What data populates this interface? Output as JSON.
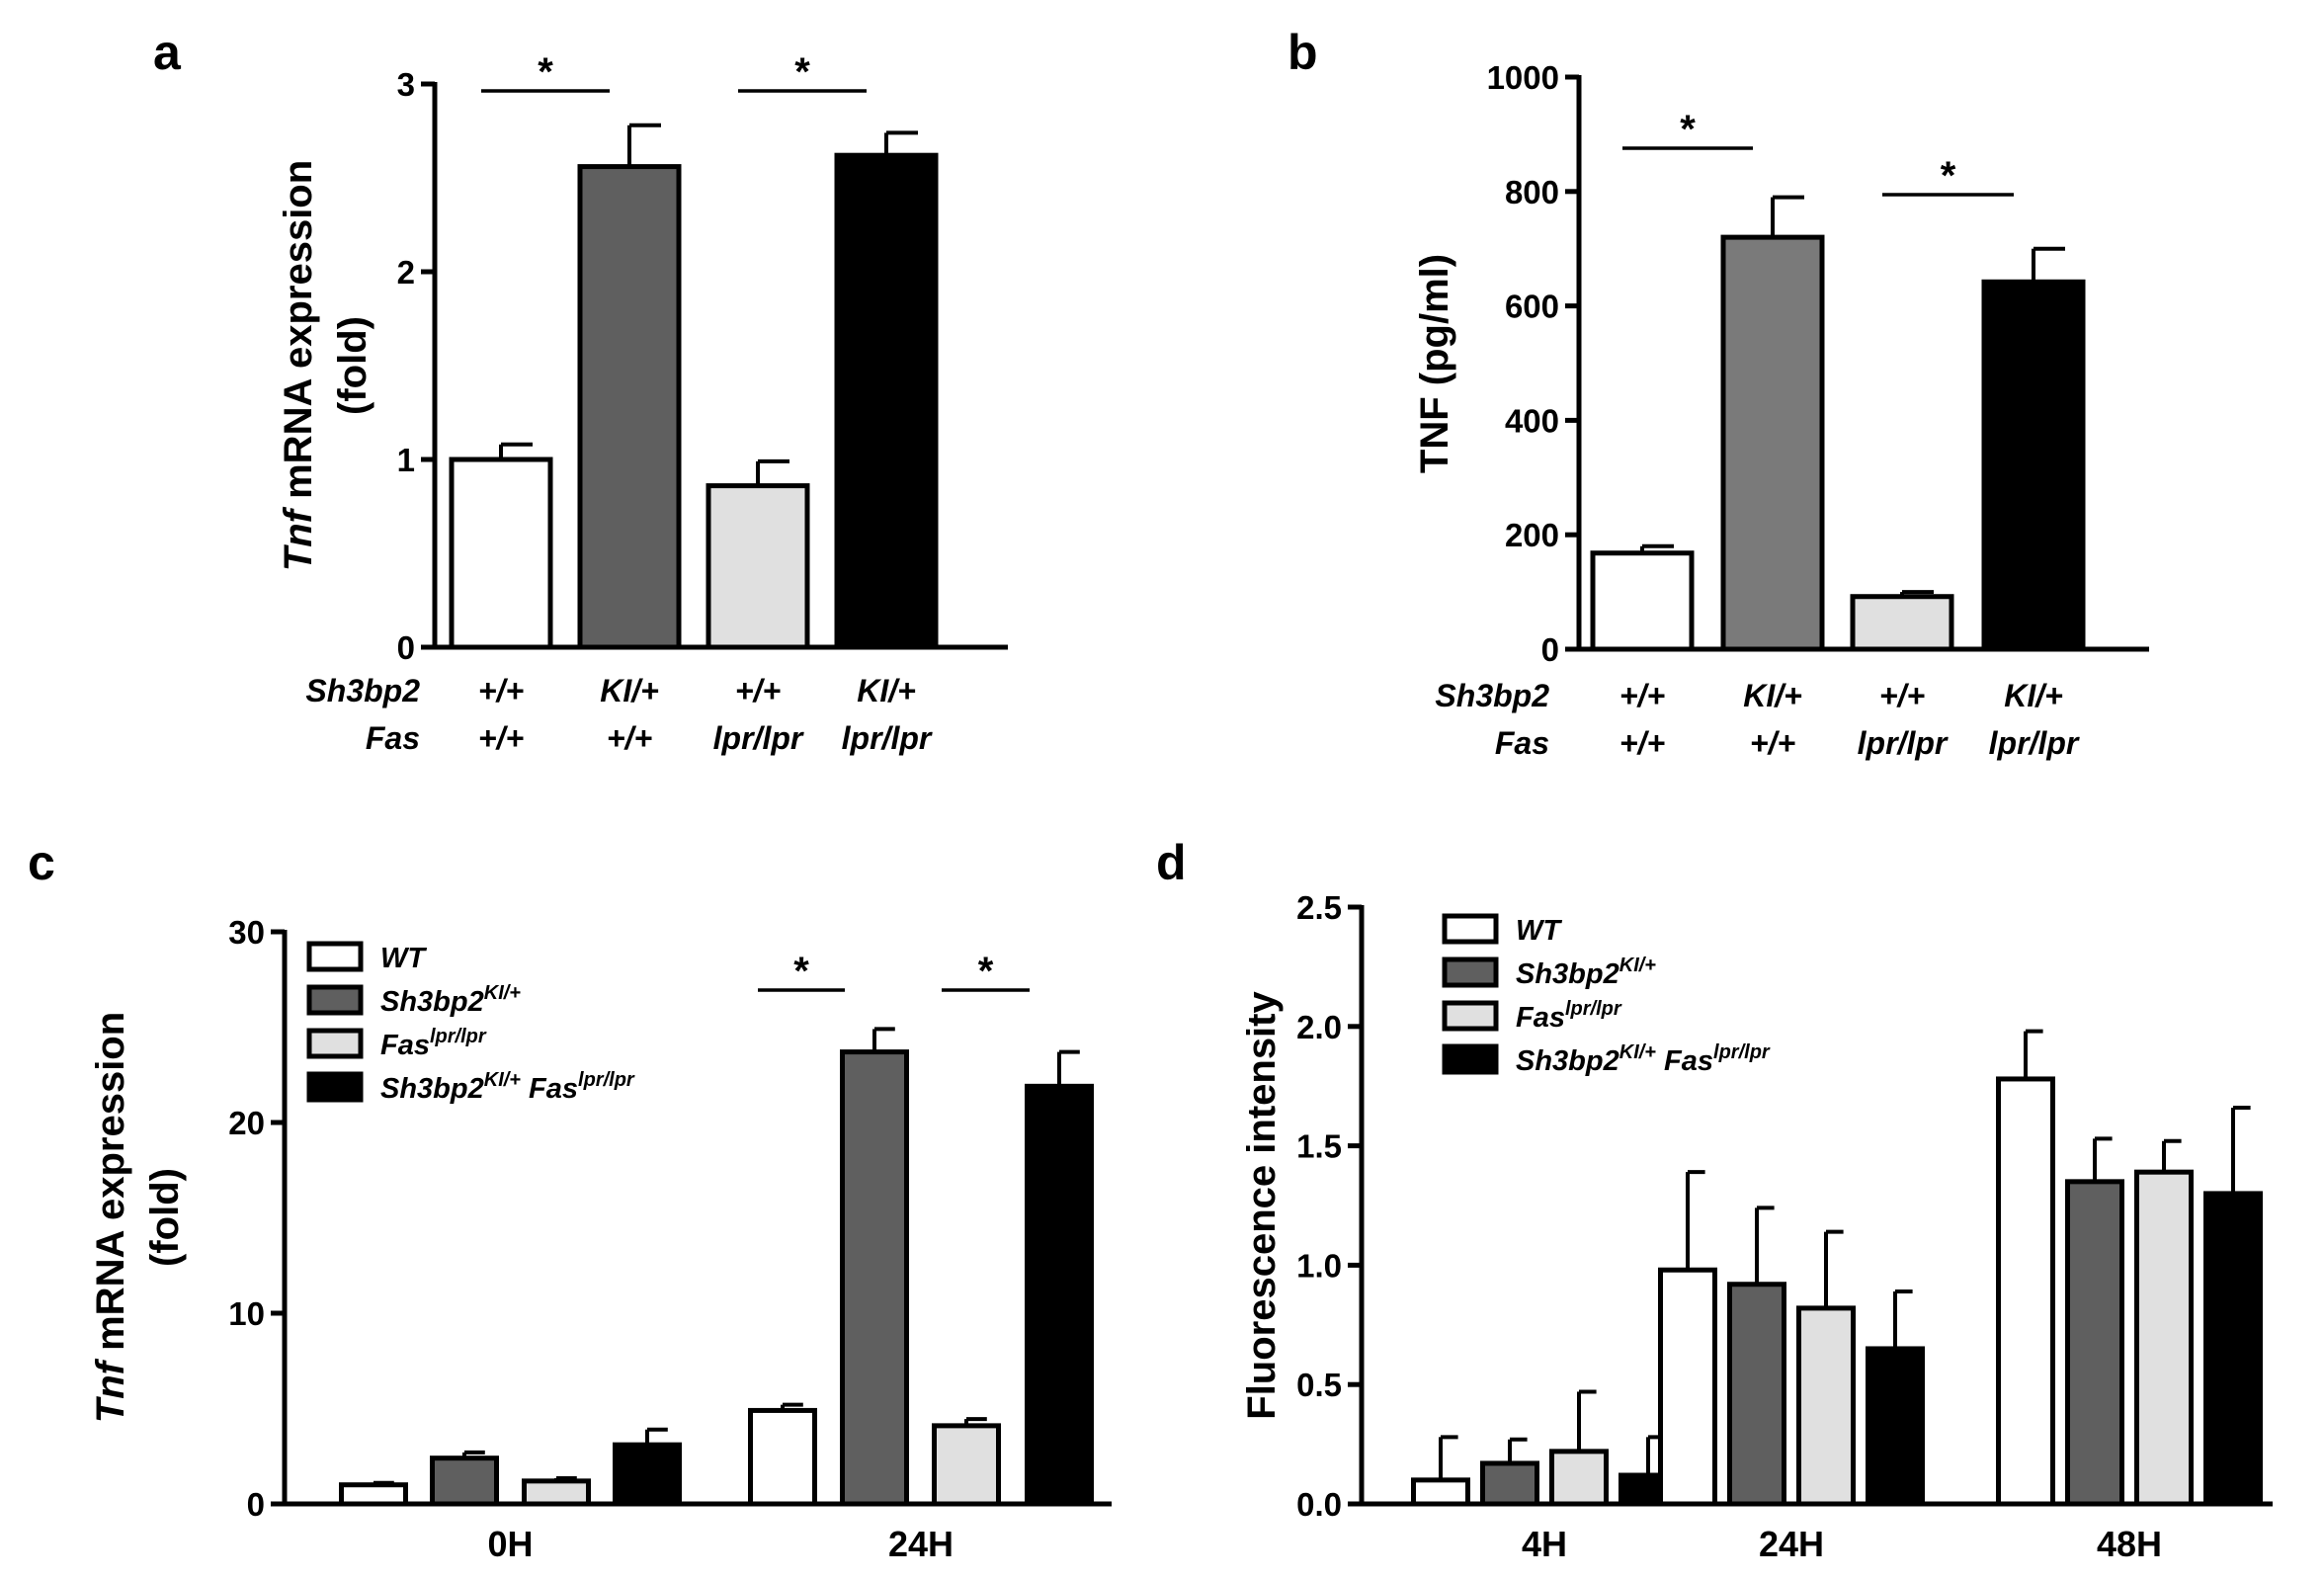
{
  "chart_data": [
    {
      "panel": "a",
      "type": "bar",
      "ylabel_italic": "Tnf",
      "ylabel_rest": " mRNA expression",
      "ylabel_line2": "(fold)",
      "ylim": [
        0,
        3
      ],
      "yticks": [
        "0",
        "1",
        "2",
        "3"
      ],
      "row_labels": [
        "Sh3bp2",
        "Fas"
      ],
      "categories": [
        {
          "sh3bp2": "+/+",
          "fas": "+/+"
        },
        {
          "sh3bp2": "KI/+",
          "fas": "+/+"
        },
        {
          "sh3bp2": "+/+",
          "fas": "lpr/lpr"
        },
        {
          "sh3bp2": "KI/+",
          "fas": "lpr/lpr"
        }
      ],
      "values": [
        1.0,
        2.56,
        0.86,
        2.62
      ],
      "errors": [
        0.08,
        0.22,
        0.13,
        0.12
      ],
      "colors": [
        "#ffffff",
        "#5f5f5f",
        "#e0e0e0",
        "#000000"
      ],
      "significance": [
        {
          "from": 0,
          "to": 1,
          "label": "*"
        },
        {
          "from": 2,
          "to": 3,
          "label": "*"
        }
      ]
    },
    {
      "panel": "b",
      "type": "bar",
      "ylabel": "TNF (pg/ml)",
      "ylim": [
        0,
        1000
      ],
      "yticks": [
        "0",
        "200",
        "400",
        "600",
        "800",
        "1000"
      ],
      "row_labels": [
        "Sh3bp2",
        "Fas"
      ],
      "categories": [
        {
          "sh3bp2": "+/+",
          "fas": "+/+"
        },
        {
          "sh3bp2": "KI/+",
          "fas": "+/+"
        },
        {
          "sh3bp2": "+/+",
          "fas": "lpr/lpr"
        },
        {
          "sh3bp2": "KI/+",
          "fas": "lpr/lpr"
        }
      ],
      "values": [
        168,
        720,
        92,
        642
      ],
      "errors": [
        12,
        70,
        8,
        58
      ],
      "colors": [
        "#ffffff",
        "#7a7a7a",
        "#e0e0e0",
        "#000000"
      ],
      "significance": [
        {
          "from": 0,
          "to": 1,
          "label": "*"
        },
        {
          "from": 2,
          "to": 3,
          "label": "*"
        }
      ]
    },
    {
      "panel": "c",
      "type": "bar",
      "ylabel_italic": "Tnf",
      "ylabel_rest": " mRNA expression",
      "ylabel_line2": "(fold)",
      "ylim": [
        0,
        30
      ],
      "yticks": [
        "0",
        "10",
        "20",
        "30"
      ],
      "categories": [
        "0H",
        "24H"
      ],
      "series": [
        {
          "name": "WT",
          "color": "#ffffff",
          "values": [
            1.0,
            4.9
          ],
          "errors": [
            0.1,
            0.3
          ]
        },
        {
          "name": "Sh3bp2",
          "sup": "KI/+",
          "color": "#5f5f5f",
          "values": [
            2.4,
            23.7
          ],
          "errors": [
            0.3,
            1.2
          ]
        },
        {
          "name": "Fas",
          "sup": "lpr/lpr",
          "color": "#e0e0e0",
          "values": [
            1.2,
            4.1
          ],
          "errors": [
            0.15,
            0.35
          ]
        },
        {
          "name": "Sh3bp2",
          "sup": "KI/+",
          "name2": " Fas",
          "sup2": "lpr/lpr",
          "color": "#000000",
          "values": [
            3.1,
            21.9
          ],
          "errors": [
            0.8,
            1.8
          ]
        }
      ],
      "significance": [
        {
          "group": 1,
          "from": 0,
          "to": 1,
          "label": "*"
        },
        {
          "group": 1,
          "from": 2,
          "to": 3,
          "label": "*"
        }
      ],
      "legend": "top-left"
    },
    {
      "panel": "d",
      "type": "bar",
      "ylabel": "Fluorescence intensity",
      "ylim": [
        0,
        2.5
      ],
      "yticks": [
        "0.0",
        "0.5",
        "1.0",
        "1.5",
        "2.0",
        "2.5"
      ],
      "categories": [
        "4H",
        "24H",
        "48H"
      ],
      "series": [
        {
          "name": "WT",
          "color": "#ffffff",
          "values": [
            0.1,
            0.98,
            1.78
          ],
          "errors": [
            0.18,
            0.41,
            0.2
          ]
        },
        {
          "name": "Sh3bp2",
          "sup": "KI/+",
          "color": "#5f5f5f",
          "values": [
            0.17,
            0.92,
            1.35
          ],
          "errors": [
            0.1,
            0.32,
            0.18
          ]
        },
        {
          "name": "Fas",
          "sup": "lpr/lpr",
          "color": "#e0e0e0",
          "values": [
            0.22,
            0.82,
            1.39
          ],
          "errors": [
            0.25,
            0.32,
            0.13
          ]
        },
        {
          "name": "Sh3bp2",
          "sup": "KI/+",
          "name2": " Fas",
          "sup2": "lpr/lpr",
          "color": "#000000",
          "values": [
            0.12,
            0.65,
            1.3
          ],
          "errors": [
            0.16,
            0.24,
            0.36
          ]
        }
      ],
      "significance": [],
      "legend": "top-left"
    }
  ]
}
